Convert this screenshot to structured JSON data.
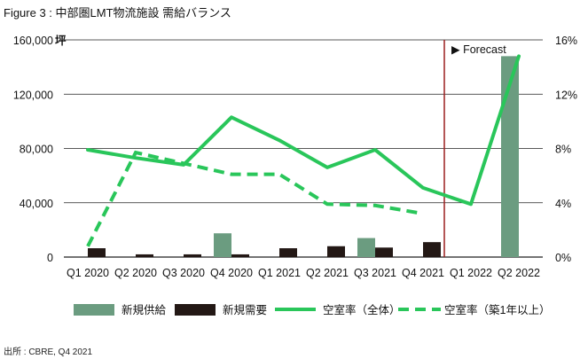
{
  "title": "Figure 3 : 中部圏LMT物流施設 需給バランス",
  "source": "出所 : CBRE, Q4 2021",
  "colors": {
    "supply": "#6b9c80",
    "demand": "#231815",
    "vacancy_all": "#29c65a",
    "vacancy_new": "#29c65a",
    "forecast_line": "#9c1f1f",
    "forecast_text": "#b22222",
    "grid": "#222222"
  },
  "chart_data": {
    "type": "bar+line",
    "categories": [
      "Q1 2020",
      "Q2 2020",
      "Q3 2020",
      "Q4 2020",
      "Q1 2021",
      "Q2 2021",
      "Q3 2021",
      "Q4 2021",
      "Q1 2022",
      "Q2 2022"
    ],
    "left_axis": {
      "unit": "坪",
      "ylim": [
        0,
        160000
      ],
      "ticks": [
        0,
        40000,
        80000,
        120000,
        160000
      ],
      "tick_labels": [
        "0",
        "40,000",
        "80,000",
        "120,000",
        "160,000"
      ]
    },
    "right_axis": {
      "ylim": [
        0,
        16
      ],
      "ticks": [
        0,
        4,
        8,
        12,
        16
      ],
      "tick_labels": [
        "0%",
        "4%",
        "8%",
        "12%",
        "16%"
      ]
    },
    "forecast_label": "▶ Forecast",
    "forecast_start_index": 8,
    "grid": true,
    "legend_position": "bottom",
    "series": [
      {
        "name": "新規供給",
        "kind": "bar",
        "axis": "left",
        "values": [
          0,
          0,
          0,
          17500,
          0,
          0,
          14000,
          0,
          0,
          148000
        ]
      },
      {
        "name": "新規需要",
        "kind": "bar",
        "axis": "left",
        "values": [
          6500,
          2000,
          2000,
          2000,
          6500,
          8000,
          7000,
          11000,
          0,
          0
        ]
      },
      {
        "name": "空室率（全体）",
        "kind": "line",
        "axis": "right",
        "values": [
          7.9,
          7.3,
          6.8,
          10.3,
          8.6,
          6.6,
          7.9,
          5.1,
          3.9,
          14.8
        ]
      },
      {
        "name": "空室率（築1年以上）",
        "kind": "dashed-line",
        "axis": "right",
        "values": [
          0.8,
          7.7,
          6.9,
          6.1,
          6.1,
          3.9,
          3.8,
          3.2,
          null,
          null
        ]
      }
    ]
  }
}
